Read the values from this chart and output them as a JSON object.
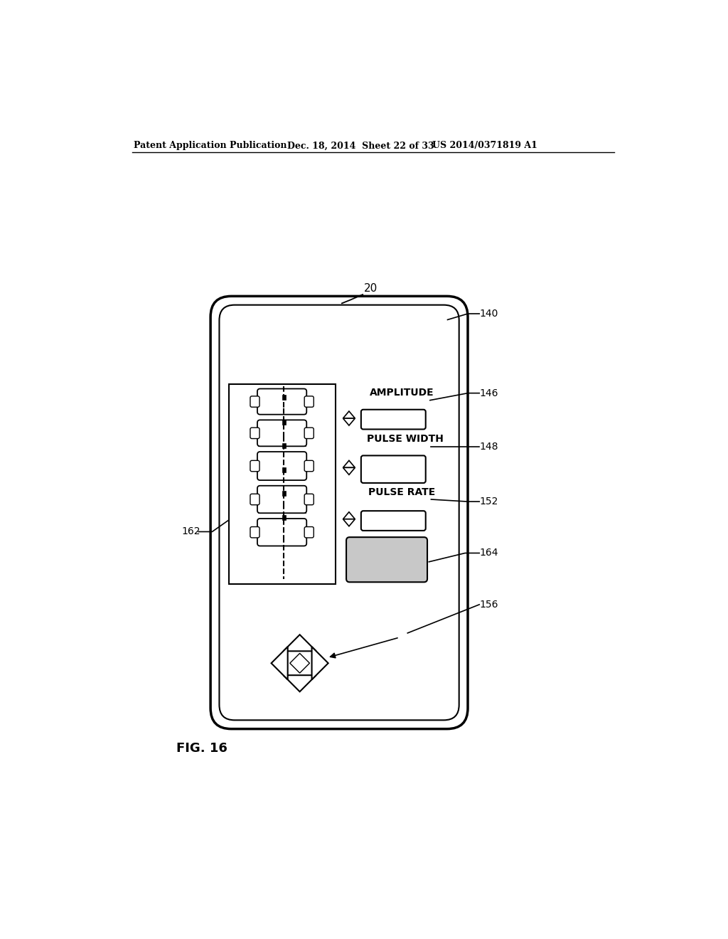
{
  "title_left": "Patent Application Publication",
  "title_mid": "Dec. 18, 2014  Sheet 22 of 33",
  "title_right": "US 2014/0371819 A1",
  "fig_label": "FIG. 16",
  "background_color": "#ffffff"
}
